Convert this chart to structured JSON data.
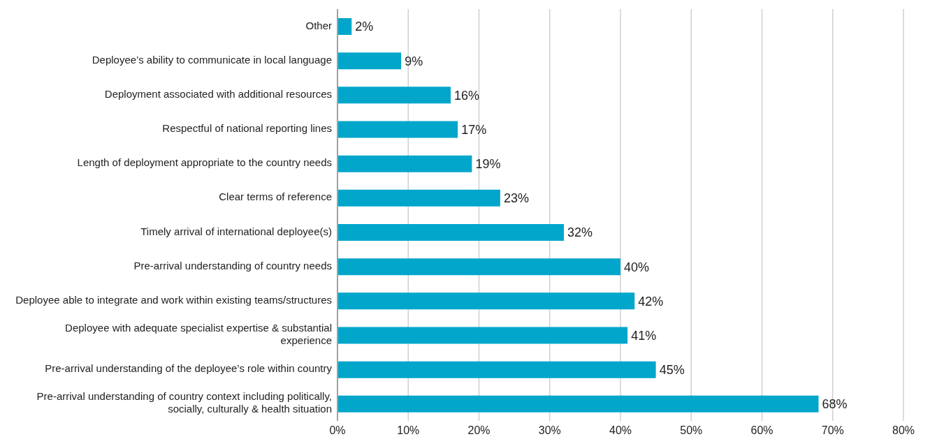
{
  "chart_data": {
    "type": "bar",
    "orientation": "horizontal",
    "categories": [
      "Other",
      "Deployee’s ability to communicate in local language",
      "Deployment associated with additional resources",
      "Respectful of national reporting lines",
      "Length of deployment appropriate to the country needs",
      "Clear terms of reference",
      "Timely arrival of international deployee(s)",
      "Pre-arrival understanding of country needs",
      "Deployee able to integrate and work within existing teams/structures",
      "Deployee with adequate specialist expertise & substantial experience",
      "Pre-arrival understanding of the deployee’s role within country",
      "Pre-arrival understanding of country context including politically, socially, culturally & health situation"
    ],
    "values": [
      2,
      9,
      16,
      17,
      19,
      23,
      32,
      40,
      42,
      41,
      45,
      68
    ],
    "value_labels": [
      "2%",
      "9%",
      "16%",
      "17%",
      "19%",
      "23%",
      "32%",
      "40%",
      "42%",
      "41%",
      "45%",
      "68%"
    ],
    "color": "#02a6cb",
    "xlim": [
      0,
      80
    ],
    "xticks": [
      {
        "value": 0,
        "label": "0%"
      },
      {
        "value": 10,
        "label": "10%"
      },
      {
        "value": 20,
        "label": "20%"
      },
      {
        "value": 30,
        "label": "30%"
      },
      {
        "value": 40,
        "label": "40%"
      },
      {
        "value": 50,
        "label": "50%"
      },
      {
        "value": 60,
        "label": "60%"
      },
      {
        "value": 70,
        "label": "70%"
      },
      {
        "value": 80,
        "label": "80%"
      }
    ],
    "grid": "x"
  }
}
